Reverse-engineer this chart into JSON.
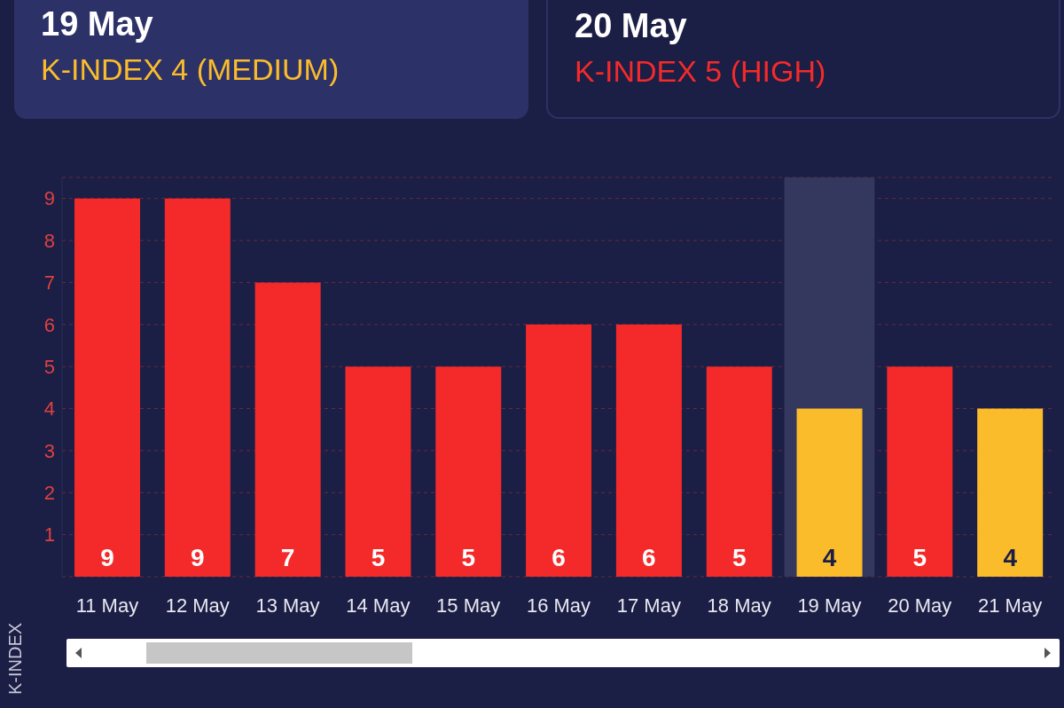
{
  "chart_data": {
    "type": "bar",
    "ylabel": "K-INDEX",
    "categories": [
      "11 May",
      "12 May",
      "13 May",
      "14 May",
      "15 May",
      "16 May",
      "17 May",
      "18 May",
      "19 May",
      "20 May",
      "21 May"
    ],
    "values": [
      9,
      9,
      7,
      5,
      5,
      6,
      6,
      5,
      4,
      5,
      4
    ],
    "colors": [
      "#f42a2a",
      "#f42a2a",
      "#f42a2a",
      "#f42a2a",
      "#f42a2a",
      "#f42a2a",
      "#f42a2a",
      "#f42a2a",
      "#fbbc2b",
      "#f42a2a",
      "#fbbc2b"
    ],
    "data_labels": true,
    "ylim": [
      0,
      9.5
    ],
    "yticks": [
      1,
      2,
      3,
      4,
      5,
      6,
      7,
      8,
      9
    ],
    "grid": "y",
    "bands": [
      {
        "axis": "x",
        "from": "19 May",
        "to": "19 May",
        "color": "#34385f"
      }
    ],
    "annotations": [
      "19 May",
      "K-INDEX 4 (MEDIUM)",
      "20 May",
      "K-INDEX 5 (HIGH)"
    ]
  }
}
